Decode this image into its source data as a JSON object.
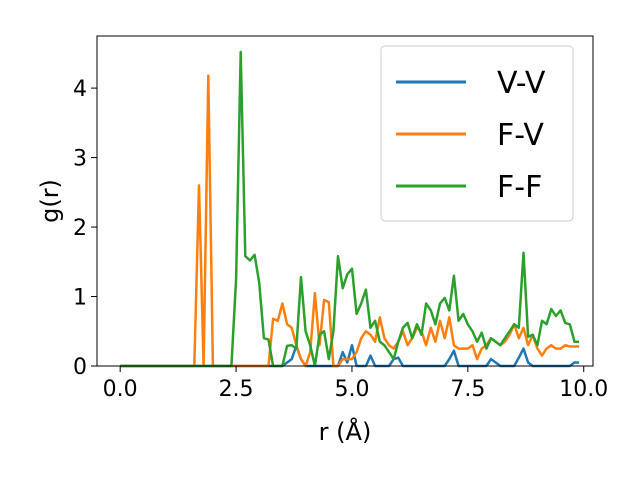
{
  "chart_data": {
    "type": "line",
    "xlabel": "r (Å)",
    "ylabel": "g(r)",
    "xlim": [
      -0.5,
      10.2
    ],
    "ylim": [
      0,
      4.75
    ],
    "xticks": [
      0.0,
      2.5,
      5.0,
      7.5,
      10.0
    ],
    "xtick_labels": [
      "0.0",
      "2.5",
      "5.0",
      "7.5",
      "10.0"
    ],
    "yticks": [
      0,
      1,
      2,
      3,
      4
    ],
    "ytick_labels": [
      "0",
      "1",
      "2",
      "3",
      "4"
    ],
    "grid": false,
    "legend_position": "top-right",
    "series": [
      {
        "name": "V-V",
        "color": "#1f77b4",
        "x": [
          0,
          3.5,
          3.7,
          3.8,
          3.9,
          4.0,
          4.7,
          4.8,
          4.9,
          5.0,
          5.1,
          5.3,
          5.4,
          5.5,
          5.6,
          5.8,
          5.9,
          6.0,
          6.1,
          6.2,
          6.3,
          7.0,
          7.1,
          7.2,
          7.3,
          7.4,
          7.5,
          7.9,
          8.0,
          8.1,
          8.2,
          8.5,
          8.6,
          8.7,
          8.8,
          8.9,
          9.0,
          9.7,
          9.8,
          9.9
        ],
        "y": [
          0,
          0,
          0.1,
          0.29,
          0.1,
          0,
          0,
          0.2,
          0.05,
          0.3,
          0,
          0,
          0.15,
          0,
          0,
          0,
          0.1,
          0.12,
          0,
          0,
          0,
          0,
          0.1,
          0.22,
          0,
          0,
          0,
          0,
          0.1,
          0.05,
          0,
          0,
          0.12,
          0.25,
          0.05,
          0,
          0,
          0,
          0.05,
          0.05
        ]
      },
      {
        "name": "F-V",
        "color": "#ff7f0e",
        "x": [
          0,
          1.6,
          1.7,
          1.8,
          1.9,
          2.0,
          3.2,
          3.3,
          3.4,
          3.5,
          3.6,
          3.7,
          3.8,
          3.9,
          4.0,
          4.1,
          4.2,
          4.3,
          4.4,
          4.5,
          4.6,
          4.7,
          4.8,
          4.9,
          5.0,
          5.1,
          5.2,
          5.3,
          5.4,
          5.5,
          5.6,
          5.7,
          5.8,
          5.9,
          6.0,
          6.1,
          6.2,
          6.3,
          6.4,
          6.5,
          6.6,
          6.7,
          6.8,
          6.9,
          7.0,
          7.1,
          7.2,
          7.3,
          7.4,
          7.5,
          7.6,
          7.7,
          7.8,
          7.9,
          8.0,
          8.1,
          8.2,
          8.3,
          8.4,
          8.5,
          8.6,
          8.7,
          8.8,
          8.9,
          9.0,
          9.1,
          9.2,
          9.3,
          9.4,
          9.5,
          9.6,
          9.7,
          9.8,
          9.9
        ],
        "y": [
          0,
          0,
          2.6,
          0,
          4.18,
          0,
          0,
          0.68,
          0.65,
          0.9,
          0.6,
          0.55,
          0.3,
          0.1,
          0,
          0.2,
          1.05,
          0.3,
          0.95,
          0.92,
          0,
          0,
          0.1,
          0.1,
          0.1,
          0.2,
          0.4,
          0.5,
          0.45,
          0.35,
          0.7,
          0.4,
          0.3,
          0.25,
          0.35,
          0.5,
          0.3,
          0.4,
          0.55,
          0.5,
          0.3,
          0.55,
          0.35,
          0.65,
          0.4,
          0.7,
          0.3,
          0.25,
          0.25,
          0.25,
          0.3,
          0.1,
          0.25,
          0.3,
          0.4,
          0.35,
          0.3,
          0.35,
          0.45,
          0.6,
          0.4,
          0.55,
          0.3,
          0.45,
          0.25,
          0.15,
          0.25,
          0.3,
          0.25,
          0.25,
          0.3,
          0.28,
          0.28,
          0.28
        ]
      },
      {
        "name": "F-F",
        "color": "#2ca02c",
        "x": [
          0,
          2.4,
          2.5,
          2.6,
          2.7,
          2.8,
          2.9,
          3.0,
          3.1,
          3.2,
          3.3,
          3.4,
          3.5,
          3.6,
          3.7,
          3.8,
          3.9,
          4.0,
          4.1,
          4.2,
          4.3,
          4.4,
          4.5,
          4.6,
          4.7,
          4.8,
          4.9,
          5.0,
          5.1,
          5.2,
          5.3,
          5.4,
          5.5,
          5.6,
          5.7,
          5.8,
          5.9,
          6.0,
          6.1,
          6.2,
          6.3,
          6.4,
          6.5,
          6.6,
          6.7,
          6.8,
          6.9,
          7.0,
          7.1,
          7.2,
          7.3,
          7.4,
          7.5,
          7.6,
          7.7,
          7.8,
          7.9,
          8.0,
          8.1,
          8.2,
          8.3,
          8.4,
          8.5,
          8.6,
          8.7,
          8.8,
          8.9,
          9.0,
          9.1,
          9.2,
          9.3,
          9.4,
          9.5,
          9.6,
          9.7,
          9.8,
          9.9
        ],
        "y": [
          0,
          0,
          1.25,
          4.52,
          1.58,
          1.52,
          1.6,
          1.2,
          0.4,
          0.38,
          0,
          0,
          0,
          0.29,
          0.3,
          0.25,
          1.28,
          0.5,
          0.3,
          0,
          0.45,
          0.5,
          0.1,
          0.5,
          1.58,
          1.12,
          1.32,
          1.4,
          0.75,
          0.9,
          1.1,
          0.55,
          0.65,
          0.35,
          0.3,
          0.2,
          0.1,
          0.35,
          0.55,
          0.62,
          0.4,
          0.6,
          0.45,
          0.9,
          0.8,
          0.6,
          0.9,
          0.98,
          0.8,
          1.3,
          0.65,
          0.75,
          0.6,
          0.5,
          0.35,
          0.48,
          0.25,
          0.4,
          0.35,
          0.3,
          0.4,
          0.5,
          0.6,
          0.55,
          1.63,
          0.42,
          0.45,
          0.3,
          0.65,
          0.6,
          0.82,
          0.72,
          0.8,
          0.62,
          0.6,
          0.35,
          0.35
        ]
      }
    ]
  }
}
